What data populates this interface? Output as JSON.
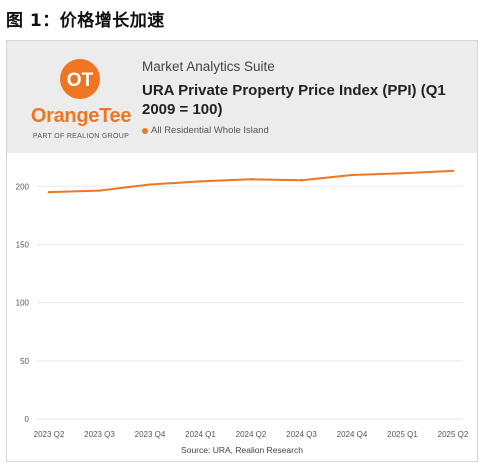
{
  "figure_title": "图 1：价格增长加速",
  "header": {
    "suite_title": "Market Analytics Suite",
    "chart_title": "URA Private Property Price Index (PPI) (Q1 2009 = 100)",
    "logo_text": "OrangeTee",
    "logo_subtext": "PART OF REALION GROUP"
  },
  "colors": {
    "accent": "#ee7623",
    "grid": "#e8e8e8"
  },
  "source": "Source: URA, Realion Research",
  "chart_data": {
    "type": "line",
    "title": "URA Private Property Price Index (PPI) (Q1 2009 = 100)",
    "xlabel": "",
    "ylabel": "",
    "categories": [
      "2023 Q2",
      "2023 Q3",
      "2023 Q4",
      "2024 Q1",
      "2024 Q2",
      "2024 Q3",
      "2024 Q4",
      "2025 Q1",
      "2025 Q2"
    ],
    "series": [
      {
        "name": "All Residential Whole Island",
        "color": "#ee7623",
        "values": [
          195.0,
          196.3,
          201.5,
          204.2,
          206.0,
          205.2,
          209.7,
          211.2,
          213.2
        ]
      }
    ],
    "ylim": [
      0,
      220
    ],
    "yticks": [
      0,
      50,
      100,
      150,
      200
    ],
    "grid": true,
    "legend": "top-left"
  }
}
